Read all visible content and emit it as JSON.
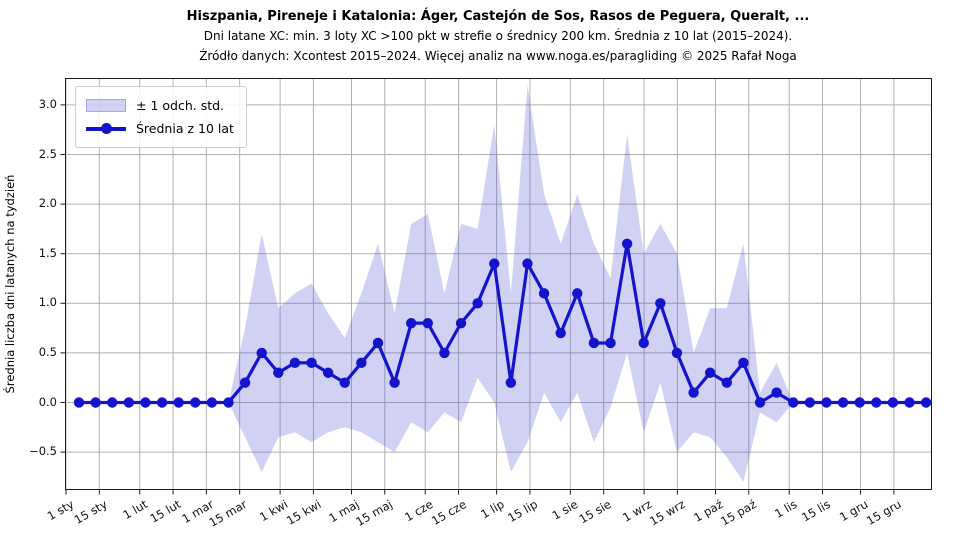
{
  "figure": {
    "title_line1": "Hiszpania, Pireneje i Katalonia: Áger, Castejón de Sos, Rasos de Peguera, Queralt, ...",
    "title_line2": "Dni latane XC: min. 3 loty XC >100 pkt w strefie o średnicy 200 km. Średnia z 10 lat (2015–2024).",
    "title_line3": "Źródło danych: Xcontest 2015–2024. Więcej analiz na www.noga.es/paragliding © 2025 Rafał Noga"
  },
  "legend": {
    "band_label": "± 1 odch. std.",
    "line_label": "Średnia z 10 lat"
  },
  "chart_data": {
    "type": "line",
    "title": "Hiszpania, Pireneje i Katalonia: Áger, Castejón de Sos, Rasos de Peguera, Queralt, ...",
    "subtitle": "Dni latane XC: min. 3 loty XC >100 pkt w strefie o średnicy 200 km. Średnia z 10 lat (2015–2024).",
    "source": "Źródło danych: Xcontest 2015–2024. Więcej analiz na www.noga.es/paragliding © 2025 Rafał Noga",
    "xlabel": "",
    "ylabel": "Średnia liczba dni latanych na tydzień",
    "ylim": [
      -0.88,
      3.27
    ],
    "grid": true,
    "legend_position": "upper-left",
    "y_ticks": {
      "values": [
        -0.5,
        0.0,
        0.5,
        1.0,
        1.5,
        2.0,
        2.5,
        3.0
      ],
      "labels": [
        "−0.5",
        "0.0",
        "0.5",
        "1.0",
        "1.5",
        "2.0",
        "2.5",
        "3.0"
      ]
    },
    "x_ticks": [
      {
        "label": "1 sty",
        "day": 0
      },
      {
        "label": "15 sty",
        "day": 14
      },
      {
        "label": "1 lut",
        "day": 31
      },
      {
        "label": "15 lut",
        "day": 45
      },
      {
        "label": "1 mar",
        "day": 59
      },
      {
        "label": "15 mar",
        "day": 73
      },
      {
        "label": "1 kwi",
        "day": 90
      },
      {
        "label": "15 kwi",
        "day": 104
      },
      {
        "label": "1 maj",
        "day": 120
      },
      {
        "label": "15 maj",
        "day": 134
      },
      {
        "label": "1 cze",
        "day": 151
      },
      {
        "label": "15 cze",
        "day": 165
      },
      {
        "label": "1 lip",
        "day": 181
      },
      {
        "label": "15 lip",
        "day": 195
      },
      {
        "label": "1 sie",
        "day": 212
      },
      {
        "label": "15 sie",
        "day": 226
      },
      {
        "label": "1 wrz",
        "day": 243
      },
      {
        "label": "15 wrz",
        "day": 257
      },
      {
        "label": "1 paź",
        "day": 273
      },
      {
        "label": "15 paź",
        "day": 287
      },
      {
        "label": "1 lis",
        "day": 304
      },
      {
        "label": "15 lis",
        "day": 318
      },
      {
        "label": "1 gru",
        "day": 334
      },
      {
        "label": "15 gru",
        "day": 348
      }
    ],
    "weeks": 52,
    "series": [
      {
        "name": "Średnia z 10 lat",
        "type": "line+markers",
        "color": "#1414cc",
        "values": [
          0,
          0,
          0,
          0,
          0,
          0,
          0,
          0,
          0,
          0,
          0.2,
          0.5,
          0.3,
          0.4,
          0.4,
          0.3,
          0.2,
          0.4,
          0.6,
          0.2,
          0.8,
          0.8,
          0.5,
          0.8,
          1.0,
          1.4,
          0.2,
          1.4,
          1.1,
          0.7,
          1.1,
          0.6,
          0.6,
          1.6,
          0.6,
          1.0,
          0.5,
          0.1,
          0.3,
          0.2,
          0.4,
          0.0,
          0.1,
          0,
          0,
          0,
          0,
          0,
          0,
          0,
          0,
          0
        ]
      },
      {
        "name": "± 1 odch. std.",
        "type": "band",
        "color": "rgba(85,85,214,0.27)",
        "std": [
          0,
          0,
          0,
          0,
          0,
          0,
          0,
          0,
          0,
          0,
          0.55,
          1.2,
          0.65,
          0.7,
          0.8,
          0.6,
          0.45,
          0.7,
          1.0,
          0.7,
          1.0,
          1.1,
          0.6,
          1.0,
          0.75,
          1.4,
          0.9,
          1.8,
          1.0,
          0.9,
          1.0,
          1.0,
          0.65,
          1.1,
          0.9,
          0.8,
          1.0,
          0.4,
          0.65,
          0.75,
          1.2,
          0.1,
          0.3,
          0,
          0,
          0,
          0,
          0,
          0,
          0,
          0,
          0
        ]
      }
    ],
    "style": {
      "grid_color": "#b0b0b0",
      "spine_color": "#1a1a1a",
      "line_width": 3.2,
      "marker_radius": 5.2
    }
  }
}
